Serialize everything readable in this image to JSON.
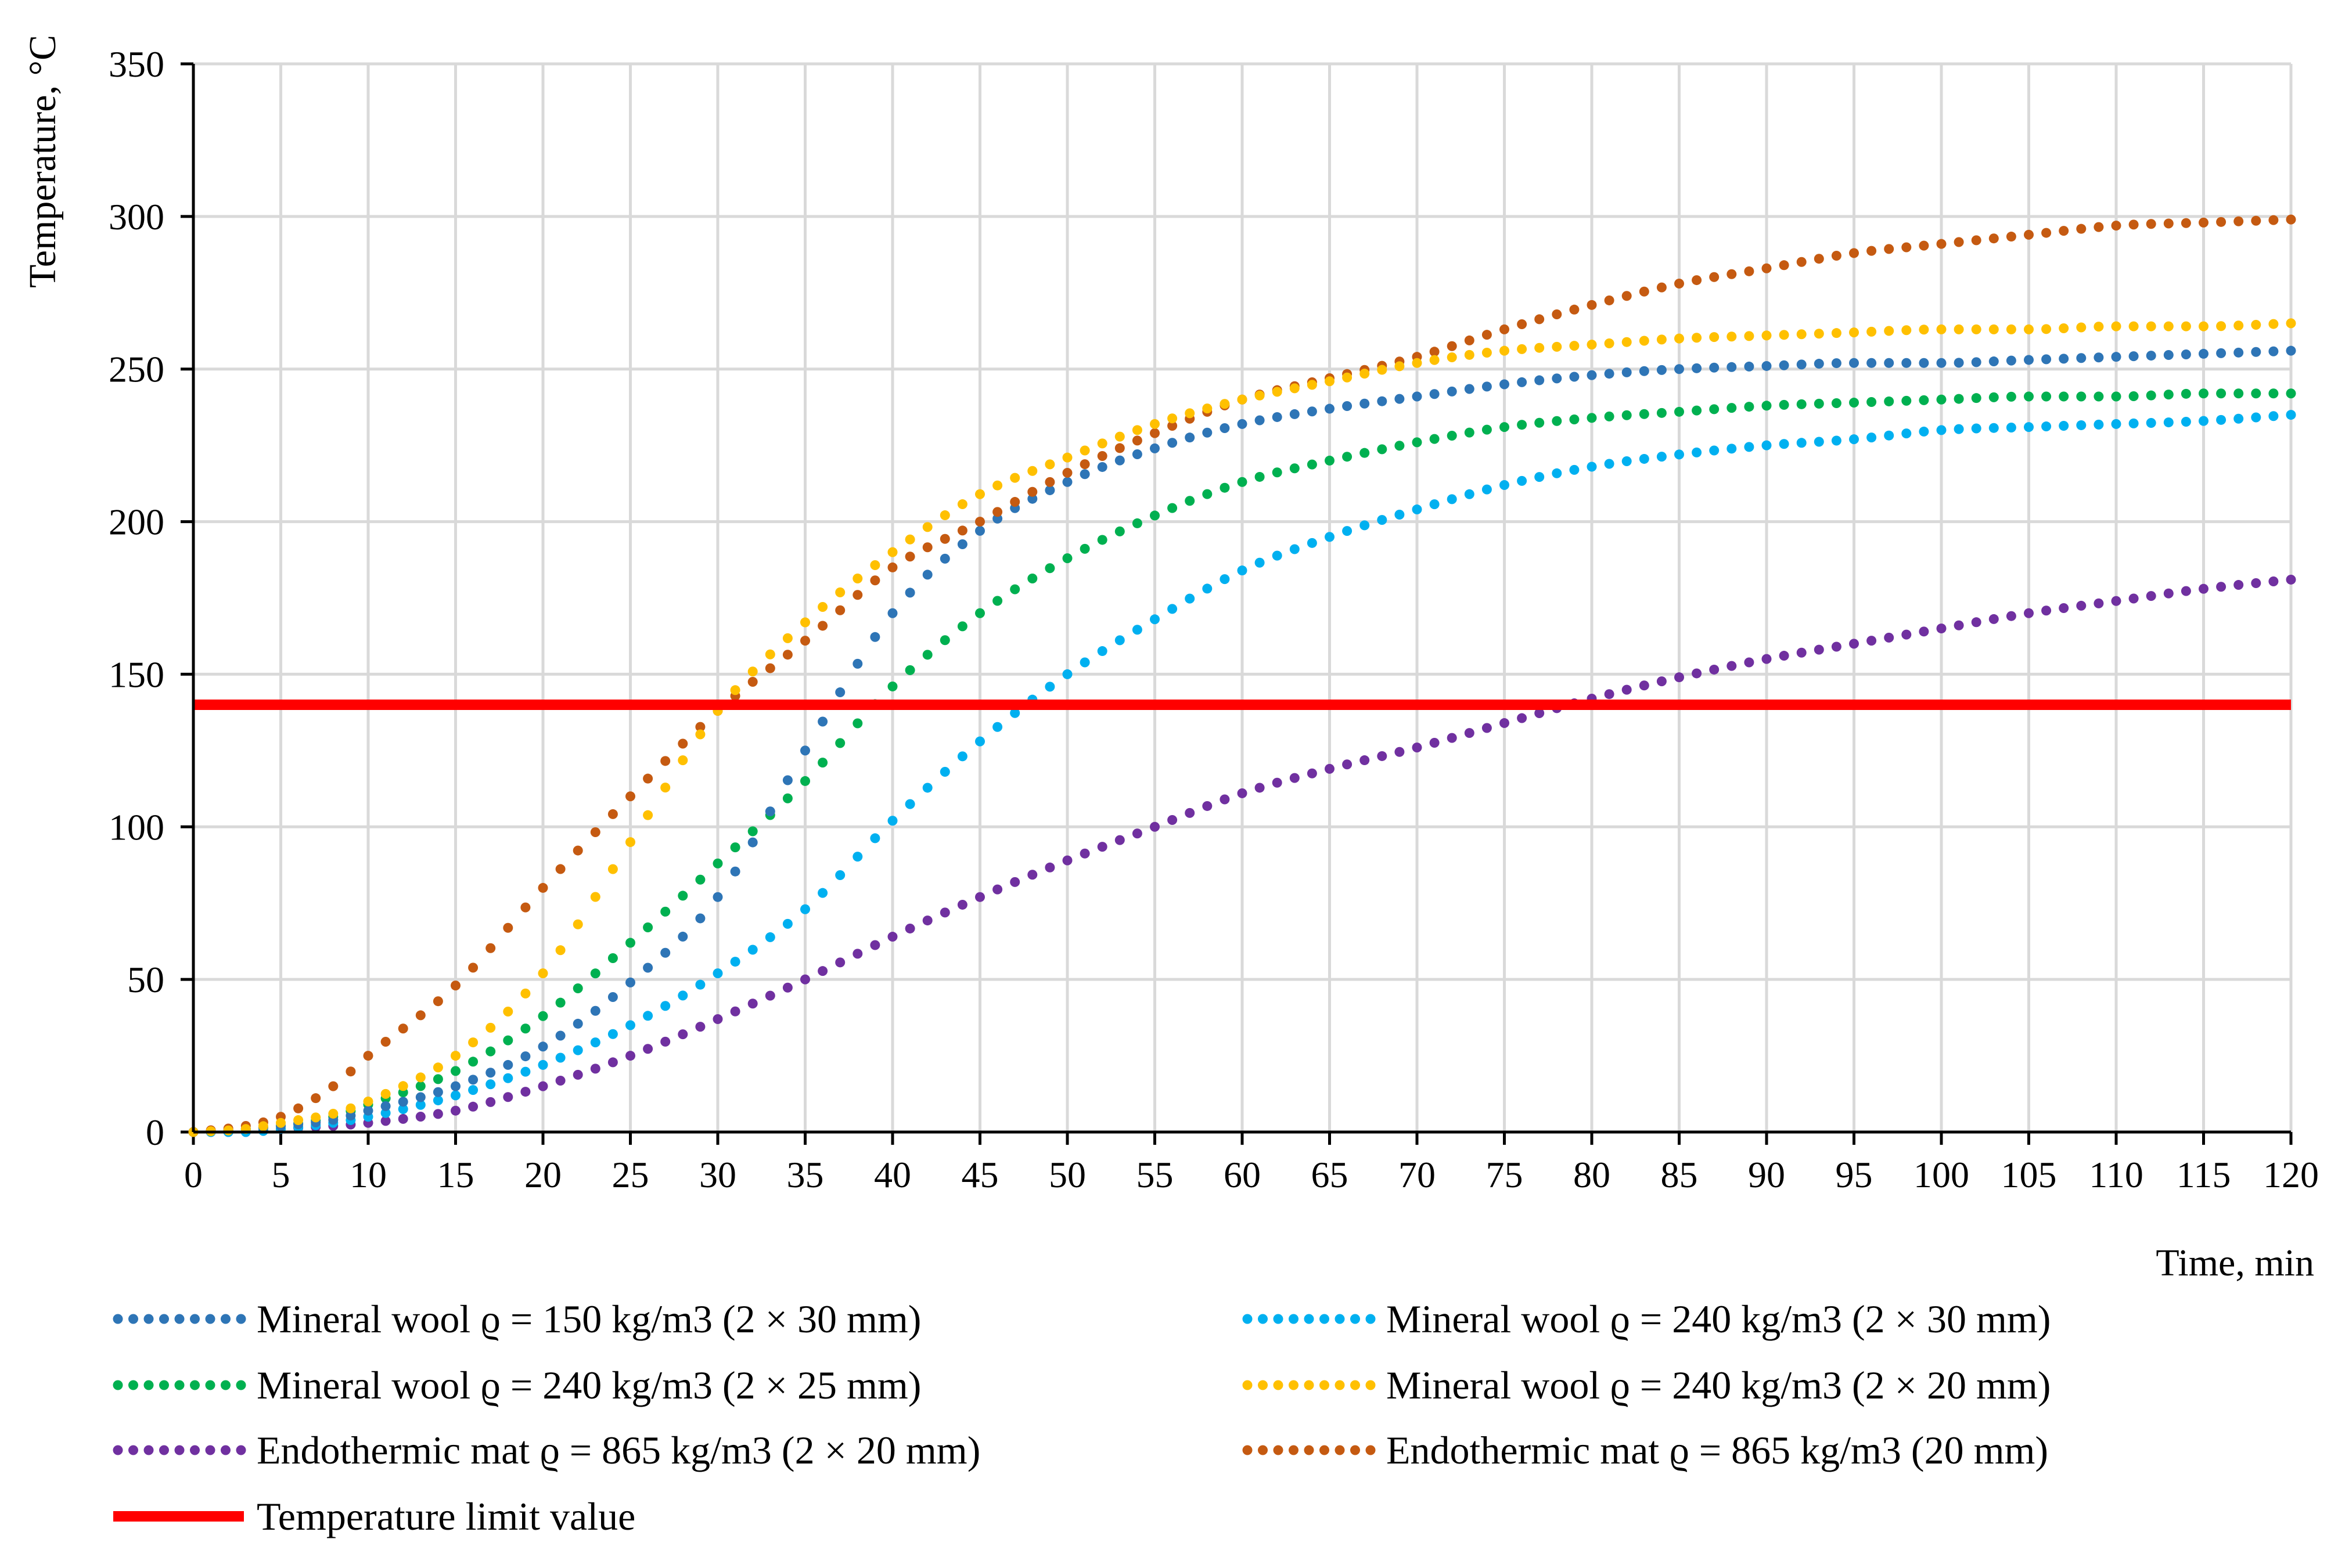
{
  "chart_data": {
    "type": "line",
    "title": "",
    "xlabel": "Time, min",
    "ylabel": "Temperature, °C",
    "xlim": [
      0,
      120
    ],
    "ylim": [
      0,
      350
    ],
    "xticks": [
      0,
      5,
      10,
      15,
      20,
      25,
      30,
      35,
      40,
      45,
      50,
      55,
      60,
      65,
      70,
      75,
      80,
      85,
      90,
      95,
      100,
      105,
      110,
      115,
      120
    ],
    "yticks": [
      0,
      50,
      100,
      150,
      200,
      250,
      300,
      350
    ],
    "grid": true,
    "legend_position": "bottom",
    "series": [
      {
        "name": "Mineral wool ϱ = 150 kg/m3 (2 × 30 mm)",
        "color": "#2E75B6",
        "style": "dotted",
        "points": [
          [
            0,
            0
          ],
          [
            3,
            1
          ],
          [
            5,
            2
          ],
          [
            8,
            4
          ],
          [
            10,
            7
          ],
          [
            15,
            15
          ],
          [
            20,
            28
          ],
          [
            25,
            49
          ],
          [
            30,
            77
          ],
          [
            35,
            125
          ],
          [
            40,
            170
          ],
          [
            45,
            197
          ],
          [
            50,
            213
          ],
          [
            55,
            224
          ],
          [
            60,
            232
          ],
          [
            65,
            237
          ],
          [
            70,
            241
          ],
          [
            75,
            245
          ],
          [
            80,
            248
          ],
          [
            85,
            250
          ],
          [
            90,
            251
          ],
          [
            95,
            252
          ],
          [
            100,
            252
          ],
          [
            105,
            253
          ],
          [
            110,
            254
          ],
          [
            115,
            255
          ],
          [
            120,
            256
          ]
        ]
      },
      {
        "name": "Mineral wool ϱ = 240 kg/m3 (2 × 30 mm)",
        "color": "#00B0F0",
        "style": "dotted",
        "points": [
          [
            0,
            0
          ],
          [
            3,
            0
          ],
          [
            5,
            1
          ],
          [
            8,
            3
          ],
          [
            10,
            5
          ],
          [
            15,
            12
          ],
          [
            20,
            22
          ],
          [
            25,
            35
          ],
          [
            30,
            52
          ],
          [
            35,
            73
          ],
          [
            40,
            102
          ],
          [
            45,
            128
          ],
          [
            50,
            150
          ],
          [
            55,
            168
          ],
          [
            60,
            184
          ],
          [
            65,
            195
          ],
          [
            70,
            204
          ],
          [
            75,
            212
          ],
          [
            80,
            218
          ],
          [
            85,
            222
          ],
          [
            90,
            225
          ],
          [
            95,
            227
          ],
          [
            100,
            230
          ],
          [
            105,
            231
          ],
          [
            110,
            232
          ],
          [
            115,
            233
          ],
          [
            120,
            235
          ]
        ]
      },
      {
        "name": "Mineral wool ϱ = 240 kg/m3 (2 × 25 mm)",
        "color": "#00B050",
        "style": "dotted",
        "points": [
          [
            0,
            0
          ],
          [
            3,
            1
          ],
          [
            5,
            2
          ],
          [
            8,
            5
          ],
          [
            10,
            9
          ],
          [
            15,
            20
          ],
          [
            20,
            38
          ],
          [
            25,
            62
          ],
          [
            30,
            88
          ],
          [
            35,
            115
          ],
          [
            40,
            146
          ],
          [
            45,
            170
          ],
          [
            50,
            188
          ],
          [
            55,
            202
          ],
          [
            60,
            213
          ],
          [
            65,
            220
          ],
          [
            70,
            226
          ],
          [
            75,
            231
          ],
          [
            80,
            234
          ],
          [
            85,
            236
          ],
          [
            90,
            238
          ],
          [
            95,
            239
          ],
          [
            100,
            240
          ],
          [
            105,
            241
          ],
          [
            110,
            241
          ],
          [
            115,
            242
          ],
          [
            120,
            242
          ]
        ]
      },
      {
        "name": "Mineral wool ϱ = 240 kg/m3 (2 × 20 mm)",
        "color": "#FFC000",
        "style": "dotted",
        "points": [
          [
            0,
            0
          ],
          [
            3,
            1
          ],
          [
            5,
            3
          ],
          [
            8,
            6
          ],
          [
            10,
            10
          ],
          [
            15,
            25
          ],
          [
            20,
            52
          ],
          [
            25,
            95
          ],
          [
            30,
            138
          ],
          [
            35,
            167
          ],
          [
            40,
            190
          ],
          [
            45,
            209
          ],
          [
            50,
            221
          ],
          [
            55,
            232
          ],
          [
            60,
            240
          ],
          [
            65,
            246
          ],
          [
            70,
            252
          ],
          [
            75,
            256
          ],
          [
            80,
            258
          ],
          [
            85,
            260
          ],
          [
            90,
            261
          ],
          [
            95,
            262
          ],
          [
            100,
            263
          ],
          [
            105,
            263
          ],
          [
            110,
            264
          ],
          [
            115,
            264
          ],
          [
            120,
            265
          ]
        ]
      },
      {
        "name": "Endothermic mat ϱ = 865 kg/m3 (2 × 20 mm)",
        "color": "#7030A0",
        "style": "dotted",
        "points": [
          [
            0,
            0
          ],
          [
            3,
            0
          ],
          [
            5,
            1
          ],
          [
            8,
            2
          ],
          [
            10,
            3
          ],
          [
            15,
            7
          ],
          [
            20,
            15
          ],
          [
            25,
            25
          ],
          [
            30,
            37
          ],
          [
            35,
            50
          ],
          [
            40,
            64
          ],
          [
            45,
            77
          ],
          [
            50,
            89
          ],
          [
            55,
            100
          ],
          [
            60,
            111
          ],
          [
            65,
            119
          ],
          [
            70,
            126
          ],
          [
            75,
            134
          ],
          [
            80,
            142
          ],
          [
            85,
            149
          ],
          [
            90,
            155
          ],
          [
            95,
            160
          ],
          [
            100,
            165
          ],
          [
            105,
            170
          ],
          [
            110,
            174
          ],
          [
            115,
            178
          ],
          [
            120,
            181
          ]
        ]
      },
      {
        "name": "Endothermic mat ϱ = 865 kg/m3 (20 mm)",
        "color": "#C55A11",
        "style": "dotted",
        "points": [
          [
            0,
            0
          ],
          [
            3,
            2
          ],
          [
            5,
            5
          ],
          [
            8,
            15
          ],
          [
            10,
            25
          ],
          [
            15,
            48
          ],
          [
            20,
            80
          ],
          [
            25,
            110
          ],
          [
            30,
            138
          ],
          [
            35,
            161
          ],
          [
            40,
            185
          ],
          [
            45,
            200
          ],
          [
            50,
            216
          ],
          [
            55,
            229
          ],
          [
            60,
            240
          ],
          [
            65,
            247
          ],
          [
            70,
            254
          ],
          [
            75,
            263
          ],
          [
            80,
            271
          ],
          [
            85,
            278
          ],
          [
            90,
            283
          ],
          [
            95,
            288
          ],
          [
            100,
            291
          ],
          [
            105,
            294
          ],
          [
            110,
            297
          ],
          [
            115,
            298
          ],
          [
            120,
            299
          ]
        ]
      },
      {
        "name": "Temperature limit value",
        "color": "#FF0000",
        "style": "solid",
        "points": [
          [
            0,
            140
          ],
          [
            120,
            140
          ]
        ]
      }
    ]
  }
}
